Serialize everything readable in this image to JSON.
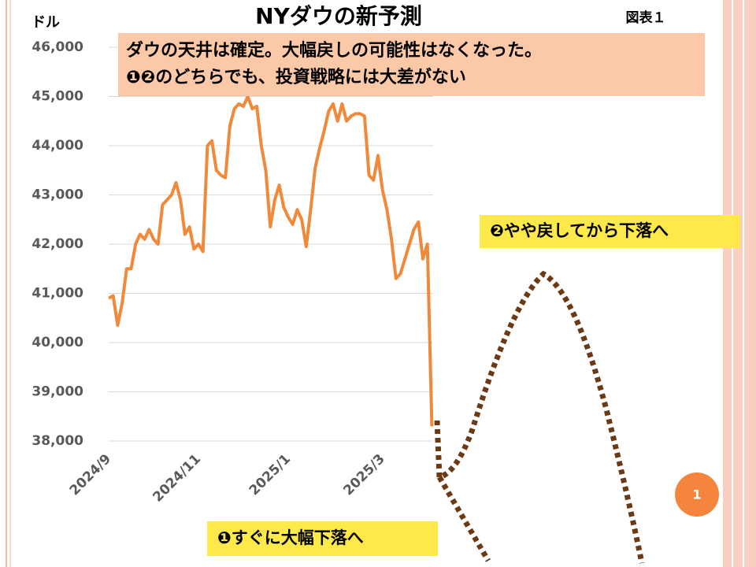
{
  "chart_data": {
    "type": "line",
    "title": "NYダウの新予測",
    "figure_label": "図表１",
    "y_axis_label": "ドル",
    "notes": [
      "ダウの天井は確定。大幅戻しの可能性はなくなった。",
      "❶❷のどちらでも、投資戦略には大差がない"
    ],
    "scenarios": [
      "❶すぐに大幅下落へ",
      "❷やや戻してから下落へ"
    ],
    "badge": "1",
    "color": "#f08a3a",
    "grid": true,
    "ylim": [
      38000,
      46000
    ],
    "yticks": [
      {
        "value": 38000,
        "label": "38,000"
      },
      {
        "value": 39000,
        "label": "39,000"
      },
      {
        "value": 40000,
        "label": "40,000"
      },
      {
        "value": 41000,
        "label": "41,000"
      },
      {
        "value": 42000,
        "label": "42,000"
      },
      {
        "value": 43000,
        "label": "43,000"
      },
      {
        "value": 44000,
        "label": "44,000"
      },
      {
        "value": 45000,
        "label": "45,000"
      },
      {
        "value": 46000,
        "label": "46,000"
      }
    ],
    "categories": [
      "2024/9",
      null,
      null,
      null,
      null,
      null,
      null,
      null,
      null,
      null,
      null,
      null,
      null,
      null,
      null,
      null,
      null,
      null,
      null,
      null,
      "2024/11",
      null,
      null,
      null,
      null,
      null,
      null,
      null,
      null,
      null,
      null,
      null,
      null,
      null,
      null,
      null,
      null,
      null,
      null,
      null,
      "2025/1",
      null,
      null,
      null,
      null,
      null,
      null,
      null,
      null,
      null,
      null,
      null,
      null,
      null,
      null,
      null,
      null,
      null,
      null,
      null,
      null,
      "2025/3",
      null,
      null,
      null,
      null,
      null,
      null,
      null,
      null,
      null,
      null,
      null
    ],
    "values": [
      40900,
      40950,
      40350,
      40800,
      41500,
      41500,
      42000,
      42200,
      42100,
      42300,
      42100,
      42000,
      42800,
      42900,
      43000,
      43250,
      42900,
      42200,
      42350,
      41900,
      42000,
      41850,
      44000,
      44100,
      43500,
      43400,
      43350,
      44400,
      44750,
      44850,
      44800,
      45000,
      44750,
      44800,
      44000,
      43500,
      42350,
      42900,
      43200,
      42750,
      42550,
      42400,
      42700,
      42500,
      41950,
      42700,
      43550,
      43950,
      44300,
      44700,
      44850,
      44500,
      44850,
      44500,
      44600,
      44650,
      44650,
      44600,
      43400,
      43300,
      43800,
      43100,
      42700,
      42100,
      41300,
      41400,
      41700,
      42000,
      42300,
      42450,
      41700,
      42000,
      38300
    ]
  }
}
